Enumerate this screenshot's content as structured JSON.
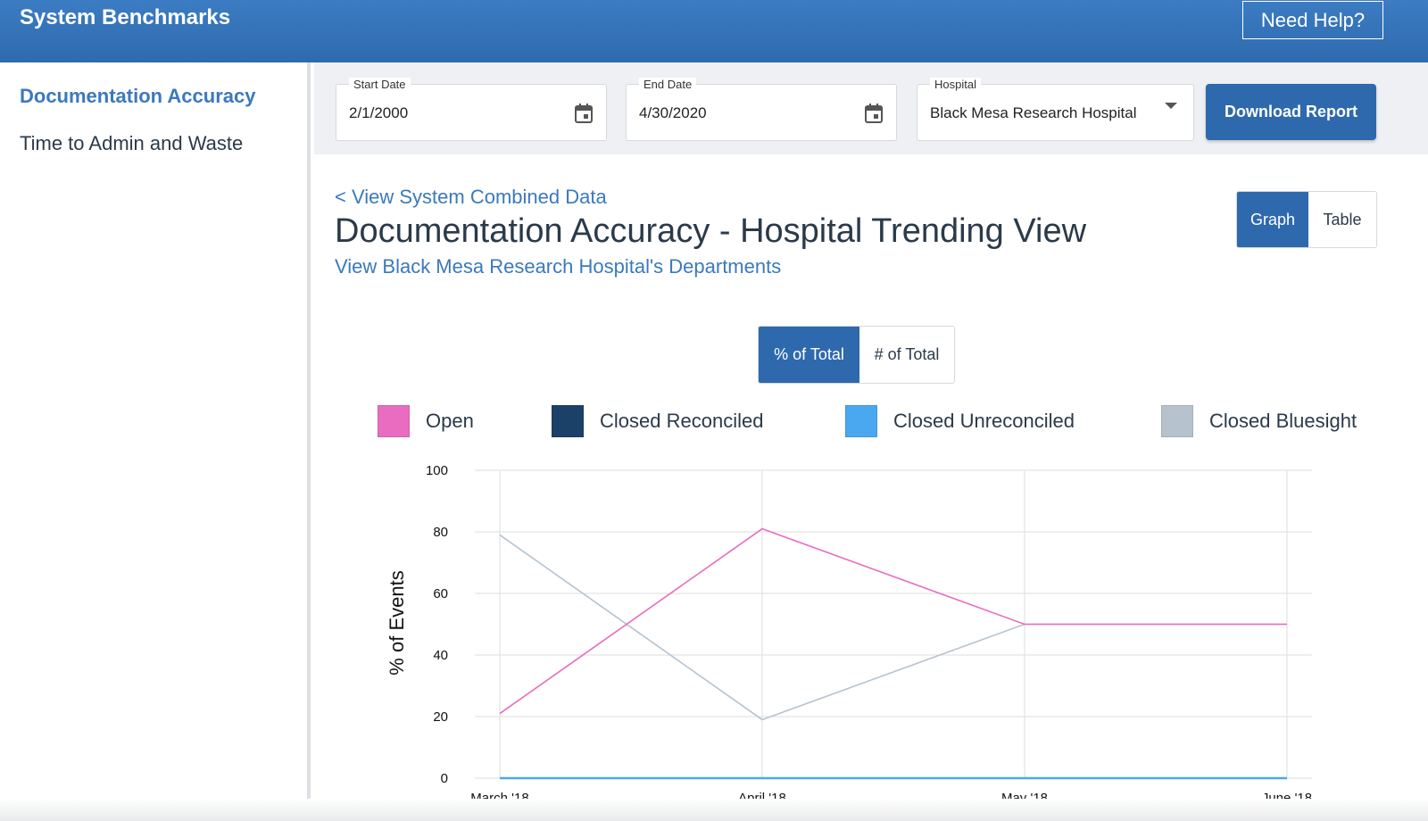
{
  "header": {
    "title": "System Benchmarks",
    "help_label": "Need Help?"
  },
  "sidebar": {
    "items": [
      {
        "label": "Documentation Accuracy"
      },
      {
        "label": "Time to Admin and Waste"
      }
    ]
  },
  "filters": {
    "start_date": {
      "label": "Start Date",
      "value": "2/1/2000",
      "icon": "calendar-icon"
    },
    "end_date": {
      "label": "End Date",
      "value": "4/30/2020",
      "icon": "calendar-icon"
    },
    "hospital": {
      "label": "Hospital",
      "value": "Black Mesa Research Hospital",
      "icon": "chevron-down-icon"
    },
    "download_label": "Download Report"
  },
  "main": {
    "back_link": "< View System Combined Data",
    "title": "Documentation Accuracy - Hospital Trending View",
    "dept_link": "View Black Mesa Research Hospital's Departments",
    "view_toggle": {
      "graph": "Graph",
      "table": "Table",
      "selected": "Graph"
    },
    "metric_toggle": {
      "percent": "% of Total",
      "count": "# of Total",
      "selected": "% of Total"
    }
  },
  "colors": {
    "accent": "#2e69ad",
    "link": "#3b79bd"
  },
  "chart_data": {
    "type": "line",
    "ylabel": "% of Events",
    "xlabel": "",
    "ylim": [
      0,
      100
    ],
    "yticks": [
      0,
      20,
      40,
      60,
      80,
      100
    ],
    "categories": [
      "March '18",
      "April '18",
      "May '18",
      "June '18"
    ],
    "grid": true,
    "series": [
      {
        "name": "Open",
        "color": "#e86dc0",
        "values": [
          21,
          81,
          50,
          50
        ]
      },
      {
        "name": "Closed Reconciled",
        "color": "#1c4169",
        "values": [
          0,
          0,
          0,
          0
        ]
      },
      {
        "name": "Closed Unreconciled",
        "color": "#4aa8f0",
        "values": [
          0,
          0,
          0,
          0
        ]
      },
      {
        "name": "Closed Bluesight",
        "color": "#b6c3cf",
        "values": [
          79,
          19,
          50,
          50
        ]
      }
    ]
  }
}
